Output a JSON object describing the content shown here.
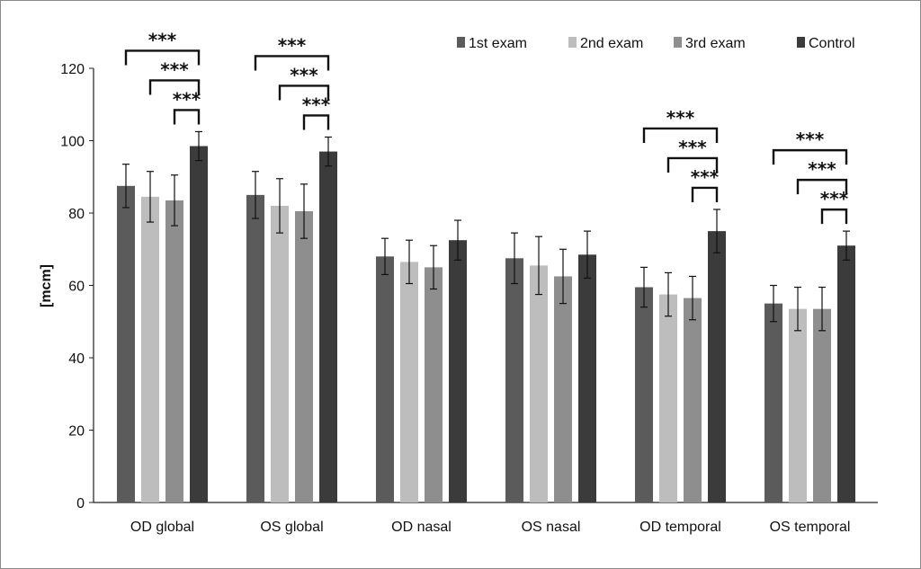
{
  "chart_data": {
    "type": "bar",
    "title": "",
    "xlabel": "",
    "ylabel": "[mcm]",
    "ylim": [
      0,
      120
    ],
    "yticks": [
      "0",
      "20",
      "40",
      "60",
      "80",
      "100",
      "120"
    ],
    "grid": false,
    "legend_position": "top-right",
    "categories": [
      "OD global",
      "OS global",
      "OD nasal",
      "OS nasal",
      "OD temporal",
      "OS temporal"
    ],
    "series": [
      {
        "name": "1st exam",
        "color": "#5b5b5b",
        "values": [
          87.5,
          85,
          68,
          67.5,
          59.5,
          55
        ],
        "errors": [
          6,
          6.5,
          5,
          7,
          5.5,
          5
        ]
      },
      {
        "name": "2nd exam",
        "color": "#bdbdbd",
        "values": [
          84.5,
          82,
          66.5,
          65.5,
          57.5,
          53.5
        ],
        "errors": [
          7,
          7.5,
          6,
          8,
          6,
          6
        ]
      },
      {
        "name": "3rd exam",
        "color": "#8e8e8e",
        "values": [
          83.5,
          80.5,
          65,
          62.5,
          56.5,
          53.5
        ],
        "errors": [
          7,
          7.5,
          6,
          7.5,
          6,
          6
        ]
      },
      {
        "name": "Control",
        "color": "#3b3b3b",
        "values": [
          98.5,
          97,
          72.5,
          68.5,
          75,
          71
        ],
        "errors": [
          4,
          4,
          5.5,
          6.5,
          6,
          4
        ]
      }
    ],
    "significance": [
      {
        "category": 0,
        "from_series": 0,
        "to_series": 3,
        "label": "***"
      },
      {
        "category": 0,
        "from_series": 1,
        "to_series": 3,
        "label": "***"
      },
      {
        "category": 0,
        "from_series": 2,
        "to_series": 3,
        "label": "***"
      },
      {
        "category": 1,
        "from_series": 0,
        "to_series": 3,
        "label": "***"
      },
      {
        "category": 1,
        "from_series": 1,
        "to_series": 3,
        "label": "***"
      },
      {
        "category": 1,
        "from_series": 2,
        "to_series": 3,
        "label": "***"
      },
      {
        "category": 4,
        "from_series": 0,
        "to_series": 3,
        "label": "***"
      },
      {
        "category": 4,
        "from_series": 1,
        "to_series": 3,
        "label": "***"
      },
      {
        "category": 4,
        "from_series": 2,
        "to_series": 3,
        "label": "***"
      },
      {
        "category": 5,
        "from_series": 0,
        "to_series": 3,
        "label": "***"
      },
      {
        "category": 5,
        "from_series": 1,
        "to_series": 3,
        "label": "***"
      },
      {
        "category": 5,
        "from_series": 2,
        "to_series": 3,
        "label": "***"
      }
    ]
  }
}
